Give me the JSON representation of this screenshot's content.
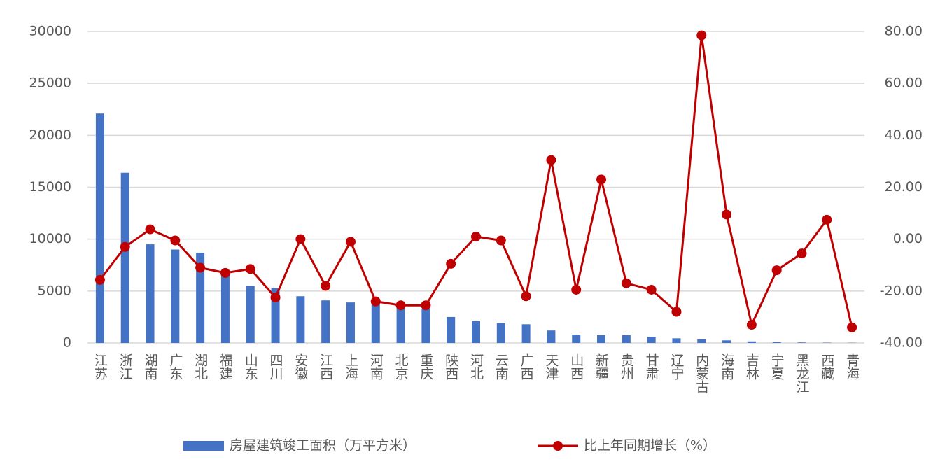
{
  "chart_data": {
    "type": "bar-line",
    "categories": [
      "江苏",
      "浙江",
      "湖南",
      "广东",
      "湖北",
      "福建",
      "山东",
      "四川",
      "安徽",
      "江西",
      "上海",
      "河南",
      "北京",
      "重庆",
      "陕西",
      "河北",
      "云南",
      "广西",
      "天津",
      "山西",
      "新疆",
      "贵州",
      "甘肃",
      "辽宁",
      "内蒙古",
      "海南",
      "吉林",
      "宁夏",
      "黑龙江",
      "西藏",
      "青海"
    ],
    "series": [
      {
        "name": "房屋建筑竣工面积（万平方米）",
        "type": "bar",
        "color": "#4472c4",
        "values": [
          22100,
          16400,
          9500,
          9000,
          8700,
          6500,
          5500,
          5300,
          4500,
          4100,
          3900,
          3800,
          3600,
          3300,
          2500,
          2100,
          1900,
          1800,
          1200,
          800,
          750,
          750,
          600,
          450,
          350,
          250,
          150,
          100,
          50,
          30,
          20
        ]
      },
      {
        "name": "比上年同期增长（%）",
        "type": "line",
        "axis": "y2",
        "color": "#c00000",
        "values": [
          -15.7,
          -3,
          3.8,
          -0.5,
          -11,
          -13,
          -11.5,
          -22.5,
          0,
          -18,
          -1,
          -24,
          -25.5,
          -25.5,
          -9.5,
          1,
          -0.5,
          -22,
          30.5,
          -19.5,
          23,
          -17,
          -19.5,
          -28,
          78.5,
          9.5,
          -33,
          -12,
          -5.5,
          7.5,
          -34
        ]
      }
    ],
    "ylim": [
      0,
      30000
    ],
    "yticks": [
      0,
      5000,
      10000,
      15000,
      20000,
      25000,
      30000
    ],
    "y2lim": [
      -40,
      80
    ],
    "y2ticks": [
      {
        "value": -40,
        "label": "-40.00"
      },
      {
        "value": -20,
        "label": "-20.00"
      },
      {
        "value": 0,
        "label": "0.00"
      },
      {
        "value": 20,
        "label": "20.00"
      },
      {
        "value": 40,
        "label": "40.00"
      },
      {
        "value": 60,
        "label": "60.00"
      },
      {
        "value": 80,
        "label": "80.00"
      }
    ],
    "grid": true,
    "legend": "bottom"
  }
}
